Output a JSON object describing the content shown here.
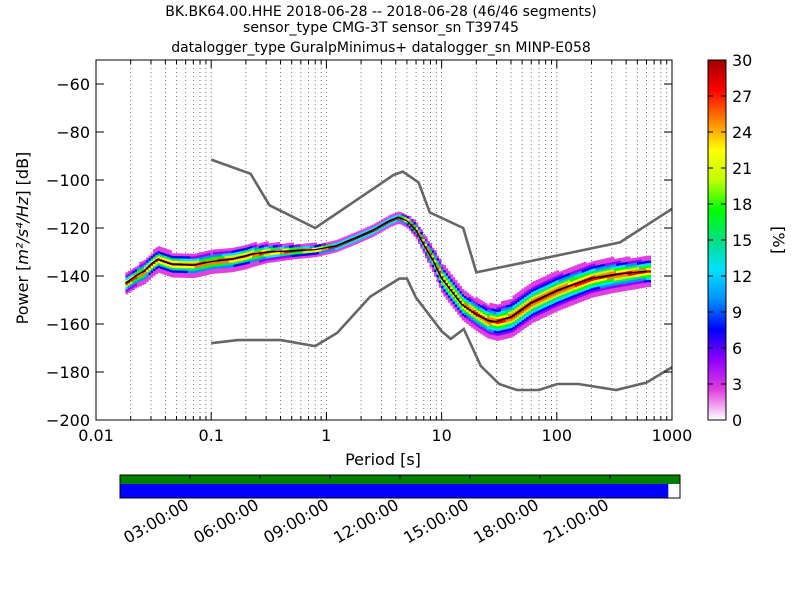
{
  "chart_data": {
    "type": "heatmap",
    "title_lines": [
      "BK.BK64.00.HHE   2018-06-28 -- 2018-06-28  (46/46 segments)",
      "sensor_type CMG-3T sensor_sn T39745",
      "datalogger_type GuralpMinimus+ datalogger_sn MINP-E058"
    ],
    "xlabel": "Period [s]",
    "ylabel_prefix": "Power [",
    "ylabel_units": "m²/s⁴/Hz",
    "ylabel_suffix": "] [dB]",
    "x_scale": "log",
    "xlim": [
      0.01,
      1000
    ],
    "ylim": [
      -200,
      -50
    ],
    "x_ticks": [
      {
        "value": 0.01,
        "label": "0.01"
      },
      {
        "value": 0.1,
        "label": "0.1"
      },
      {
        "value": 1,
        "label": "1"
      },
      {
        "value": 10,
        "label": "10"
      },
      {
        "value": 100,
        "label": "100"
      },
      {
        "value": 1000,
        "label": "1000"
      }
    ],
    "y_ticks": [
      {
        "value": -60,
        "label": "−60"
      },
      {
        "value": -80,
        "label": "−80"
      },
      {
        "value": -100,
        "label": "−100"
      },
      {
        "value": -120,
        "label": "−120"
      },
      {
        "value": -140,
        "label": "−140"
      },
      {
        "value": -160,
        "label": "−160"
      },
      {
        "value": -180,
        "label": "−180"
      },
      {
        "value": -200,
        "label": "−200"
      }
    ],
    "grid": "dotted vertical at log subdivisions",
    "colorbar": {
      "label": "[%]",
      "range": [
        0,
        30
      ],
      "ticks": [
        {
          "value": 0,
          "label": "0"
        },
        {
          "value": 3,
          "label": "3"
        },
        {
          "value": 6,
          "label": "6"
        },
        {
          "value": 9,
          "label": "9"
        },
        {
          "value": 12,
          "label": "12"
        },
        {
          "value": 15,
          "label": "15"
        },
        {
          "value": 18,
          "label": "18"
        },
        {
          "value": 21,
          "label": "21"
        },
        {
          "value": 24,
          "label": "24"
        },
        {
          "value": 27,
          "label": "27"
        },
        {
          "value": 30,
          "label": "30"
        }
      ],
      "colors": [
        "#ffffff",
        "#e040e0",
        "#9000ff",
        "#0000ff",
        "#0090ff",
        "#00e0ff",
        "#00e080",
        "#00ff00",
        "#c0ff00",
        "#ffff00",
        "#ff8000",
        "#ff0000",
        "#a00000"
      ]
    },
    "noise_model_high": [
      [
        0.1,
        -91.5
      ],
      [
        0.22,
        -97.4
      ],
      [
        0.32,
        -110.5
      ],
      [
        0.8,
        -120
      ],
      [
        3.8,
        -98
      ],
      [
        4.6,
        -96.5
      ],
      [
        6.3,
        -101
      ],
      [
        7.9,
        -113.5
      ],
      [
        15.4,
        -120
      ],
      [
        20,
        -138.5
      ],
      [
        354,
        -126
      ],
      [
        1000,
        -112
      ]
    ],
    "noise_model_low": [
      [
        0.1,
        -168
      ],
      [
        0.17,
        -166.7
      ],
      [
        0.4,
        -166.7
      ],
      [
        0.8,
        -169.2
      ],
      [
        1.24,
        -163.7
      ],
      [
        2.4,
        -148.6
      ],
      [
        4.3,
        -141.1
      ],
      [
        5,
        -141.1
      ],
      [
        6,
        -149
      ],
      [
        10,
        -163
      ],
      [
        12,
        -166.2
      ],
      [
        15.6,
        -162.1
      ],
      [
        21.9,
        -177.5
      ],
      [
        31.6,
        -185
      ],
      [
        45,
        -187.5
      ],
      [
        70,
        -187.5
      ],
      [
        101,
        -185
      ],
      [
        154,
        -185
      ],
      [
        328,
        -187.5
      ],
      [
        600,
        -184.4
      ],
      [
        1000,
        -178
      ]
    ],
    "mean_curve": [
      [
        0.018,
        -143
      ],
      [
        0.022,
        -140
      ],
      [
        0.026,
        -138
      ],
      [
        0.03,
        -135
      ],
      [
        0.034,
        -133
      ],
      [
        0.045,
        -135
      ],
      [
        0.07,
        -135.5
      ],
      [
        0.1,
        -134
      ],
      [
        0.15,
        -133
      ],
      [
        0.22,
        -131
      ],
      [
        0.3,
        -130
      ],
      [
        0.5,
        -129.5
      ],
      [
        0.8,
        -129
      ],
      [
        1.2,
        -127.5
      ],
      [
        1.8,
        -124
      ],
      [
        2.5,
        -121
      ],
      [
        3.5,
        -117
      ],
      [
        4.2,
        -115.5
      ],
      [
        5,
        -117
      ],
      [
        6,
        -121
      ],
      [
        7,
        -127
      ],
      [
        8.5,
        -134
      ],
      [
        10,
        -141
      ],
      [
        12,
        -146
      ],
      [
        15,
        -152
      ],
      [
        20,
        -156
      ],
      [
        25,
        -158.5
      ],
      [
        30,
        -159
      ],
      [
        40,
        -157
      ],
      [
        60,
        -151
      ],
      [
        100,
        -146
      ],
      [
        150,
        -143
      ],
      [
        200,
        -141
      ],
      [
        300,
        -139.5
      ],
      [
        600,
        -138
      ]
    ],
    "distribution_spread": [
      [
        0.018,
        4
      ],
      [
        0.03,
        5
      ],
      [
        0.045,
        5
      ],
      [
        0.1,
        4.5
      ],
      [
        0.2,
        5
      ],
      [
        0.3,
        4
      ],
      [
        0.5,
        3
      ],
      [
        0.8,
        2.5
      ],
      [
        1.2,
        2
      ],
      [
        2,
        2
      ],
      [
        3,
        2
      ],
      [
        4,
        2
      ],
      [
        5,
        2.5
      ],
      [
        7,
        4
      ],
      [
        10,
        6
      ],
      [
        15,
        6
      ],
      [
        25,
        7
      ],
      [
        40,
        8
      ],
      [
        100,
        8
      ],
      [
        300,
        7
      ],
      [
        600,
        6
      ]
    ],
    "timeline": {
      "labels": [
        "03:00:00",
        "06:00:00",
        "09:00:00",
        "12:00:00",
        "15:00:00",
        "18:00:00",
        "21:00:00"
      ],
      "start_hour": 0,
      "end_hour": 24,
      "coverage_color": "#008000",
      "data_color": "#0000ff",
      "data_end_hour": 23.5
    }
  }
}
